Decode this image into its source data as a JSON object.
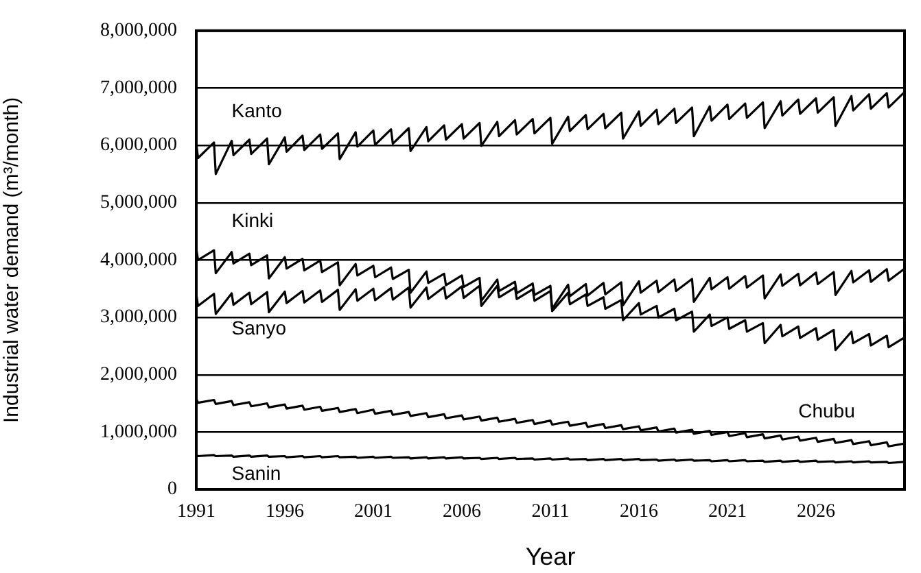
{
  "chart_data": {
    "type": "line",
    "xlabel": "Year",
    "ylabel": "Industrial water demand (m³/month)",
    "x": [
      1991,
      1991.1,
      1992,
      1992.1,
      1993,
      1993.1,
      1994,
      1994.1,
      1995,
      1995.1,
      1996,
      1996.1,
      1997,
      1997.1,
      1998,
      1998.1,
      1999,
      1999.1,
      2000,
      2000.1,
      2001,
      2001.1,
      2002,
      2002.1,
      2003,
      2003.1,
      2004,
      2004.1,
      2005,
      2005.1,
      2006,
      2006.1,
      2007,
      2007.1,
      2008,
      2008.1,
      2009,
      2009.1,
      2010,
      2010.1,
      2011,
      2011.1,
      2012,
      2012.1,
      2013,
      2013.1,
      2014,
      2014.1,
      2015,
      2015.1,
      2016,
      2016.1,
      2017,
      2017.1,
      2018,
      2018.1,
      2019,
      2019.1,
      2020,
      2020.1,
      2021,
      2021.1,
      2022,
      2022.1,
      2023,
      2023.1,
      2024,
      2024.1,
      2025,
      2025.1,
      2026,
      2026.1,
      2027,
      2027.1,
      2028,
      2028.1,
      2029,
      2029.1,
      2030,
      2030.1,
      2031
    ],
    "series": [
      {
        "name": "Kanto",
        "color": "#000000",
        "values": [
          6030000,
          5780000,
          6050000,
          5500000,
          6080000,
          5830000,
          6100000,
          5850000,
          6120000,
          5670000,
          6140000,
          5890000,
          6170000,
          5920000,
          6190000,
          5940000,
          6210000,
          5760000,
          6230000,
          5980000,
          6260000,
          6010000,
          6280000,
          6030000,
          6300000,
          5900000,
          6320000,
          6070000,
          6350000,
          6100000,
          6370000,
          6120000,
          6390000,
          5990000,
          6410000,
          6160000,
          6440000,
          6190000,
          6460000,
          6210000,
          6480000,
          6030000,
          6500000,
          6250000,
          6530000,
          6280000,
          6550000,
          6300000,
          6570000,
          6120000,
          6590000,
          6340000,
          6620000,
          6370000,
          6640000,
          6390000,
          6660000,
          6160000,
          6680000,
          6430000,
          6710000,
          6460000,
          6730000,
          6480000,
          6750000,
          6300000,
          6770000,
          6520000,
          6800000,
          6550000,
          6820000,
          6570000,
          6840000,
          6340000,
          6860000,
          6610000,
          6890000,
          6640000,
          6910000,
          6660000,
          6930000
        ]
      },
      {
        "name": "Kinki",
        "color": "#000000",
        "values": [
          4200000,
          4000000,
          4170000,
          3770000,
          4140000,
          3940000,
          4110000,
          3910000,
          4080000,
          3680000,
          4050000,
          3850000,
          4020000,
          3820000,
          3990000,
          3790000,
          3960000,
          3560000,
          3930000,
          3730000,
          3900000,
          3700000,
          3870000,
          3670000,
          3830000,
          3430000,
          3800000,
          3600000,
          3760000,
          3560000,
          3730000,
          3530000,
          3690000,
          3290000,
          3660000,
          3460000,
          3620000,
          3420000,
          3590000,
          3390000,
          3550000,
          3150000,
          3570000,
          3370000,
          3580000,
          3380000,
          3600000,
          3400000,
          3610000,
          3210000,
          3630000,
          3430000,
          3640000,
          3440000,
          3660000,
          3460000,
          3670000,
          3270000,
          3690000,
          3490000,
          3700000,
          3500000,
          3720000,
          3520000,
          3730000,
          3330000,
          3750000,
          3550000,
          3760000,
          3560000,
          3780000,
          3580000,
          3790000,
          3390000,
          3810000,
          3610000,
          3820000,
          3620000,
          3840000,
          3640000,
          3850000
        ]
      },
      {
        "name": "Sanyo",
        "color": "#000000",
        "values": [
          3400000,
          3200000,
          3410000,
          3060000,
          3420000,
          3220000,
          3430000,
          3230000,
          3440000,
          3090000,
          3450000,
          3250000,
          3460000,
          3260000,
          3470000,
          3270000,
          3480000,
          3130000,
          3490000,
          3290000,
          3500000,
          3300000,
          3510000,
          3310000,
          3520000,
          3170000,
          3520000,
          3320000,
          3530000,
          3330000,
          3540000,
          3340000,
          3550000,
          3200000,
          3550000,
          3350000,
          3520000,
          3320000,
          3490000,
          3290000,
          3460000,
          3110000,
          3430000,
          3230000,
          3400000,
          3200000,
          3350000,
          3150000,
          3300000,
          2950000,
          3250000,
          3050000,
          3200000,
          3000000,
          3150000,
          2950000,
          3100000,
          2750000,
          3050000,
          2850000,
          3000000,
          2800000,
          2950000,
          2750000,
          2900000,
          2550000,
          2870000,
          2670000,
          2840000,
          2640000,
          2810000,
          2610000,
          2780000,
          2430000,
          2750000,
          2550000,
          2710000,
          2510000,
          2680000,
          2480000,
          2650000
        ]
      },
      {
        "name": "Chubu",
        "color": "#000000",
        "values": [
          1580000,
          1510000,
          1560000,
          1490000,
          1540000,
          1470000,
          1520000,
          1450000,
          1500000,
          1430000,
          1480000,
          1410000,
          1460000,
          1390000,
          1440000,
          1370000,
          1420000,
          1350000,
          1400000,
          1330000,
          1390000,
          1320000,
          1370000,
          1300000,
          1350000,
          1280000,
          1330000,
          1260000,
          1310000,
          1240000,
          1290000,
          1220000,
          1270000,
          1200000,
          1250000,
          1180000,
          1230000,
          1160000,
          1210000,
          1140000,
          1200000,
          1130000,
          1180000,
          1110000,
          1160000,
          1090000,
          1140000,
          1070000,
          1120000,
          1050000,
          1100000,
          1030000,
          1080000,
          1010000,
          1060000,
          990000,
          1040000,
          970000,
          1020000,
          950000,
          1000000,
          930000,
          980000,
          910000,
          960000,
          890000,
          940000,
          870000,
          920000,
          850000,
          900000,
          830000,
          880000,
          810000,
          860000,
          790000,
          840000,
          770000,
          820000,
          750000,
          800000
        ]
      },
      {
        "name": "Sanin",
        "color": "#000000",
        "values": [
          600000,
          580000,
          600000,
          580000,
          590000,
          570000,
          590000,
          570000,
          590000,
          570000,
          580000,
          560000,
          580000,
          560000,
          580000,
          560000,
          580000,
          560000,
          570000,
          550000,
          570000,
          550000,
          570000,
          550000,
          560000,
          540000,
          560000,
          540000,
          560000,
          540000,
          560000,
          540000,
          550000,
          530000,
          550000,
          530000,
          550000,
          530000,
          540000,
          520000,
          540000,
          520000,
          540000,
          520000,
          530000,
          510000,
          530000,
          510000,
          530000,
          510000,
          530000,
          510000,
          520000,
          500000,
          520000,
          500000,
          520000,
          500000,
          510000,
          490000,
          510000,
          490000,
          510000,
          490000,
          500000,
          480000,
          500000,
          480000,
          500000,
          480000,
          500000,
          480000,
          490000,
          470000,
          490000,
          470000,
          490000,
          470000,
          480000,
          460000,
          480000
        ]
      }
    ],
    "xlim": [
      1991,
      2031
    ],
    "xticks": [
      1991,
      1996,
      2001,
      2006,
      2011,
      2016,
      2021,
      2026
    ],
    "ylim": [
      0,
      8000000
    ],
    "yticks": [
      0,
      {
        "value": 1000000,
        "label": "1,000,000"
      },
      {
        "value": 2000000,
        "label": "2,000,000"
      },
      {
        "value": 3000000,
        "label": "3,000,000"
      },
      {
        "value": 4000000,
        "label": "4,000,000"
      },
      {
        "value": 5000000,
        "label": "5,000,000"
      },
      {
        "value": 6000000,
        "label": "6,000,000"
      },
      {
        "value": 7000000,
        "label": "7,000,000"
      },
      {
        "value": 8000000,
        "label": "8,000,000"
      }
    ],
    "grid": "y",
    "legend": false,
    "marker": "none",
    "line_style": "solid"
  }
}
